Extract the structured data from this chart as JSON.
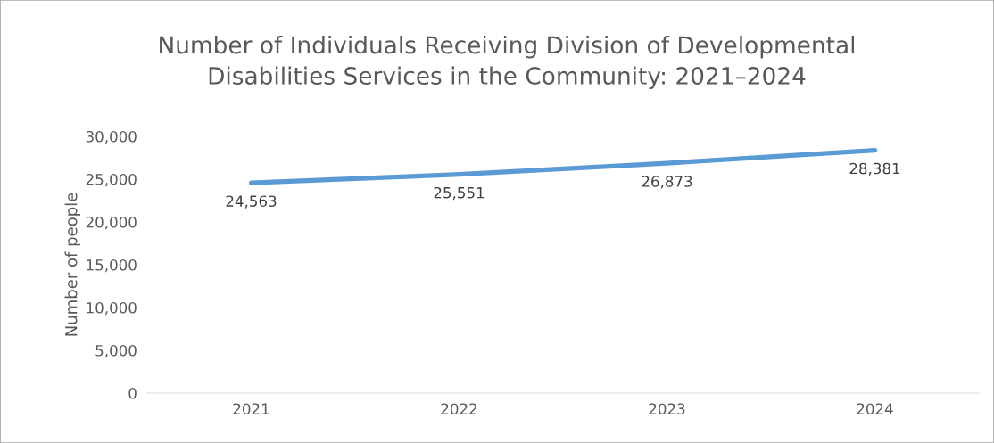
{
  "chart_data": {
    "type": "line",
    "title": "Number of Individuals Receiving Division of Developmental\nDisabilities Services in the Community: 2021–2024",
    "ylabel": "Number of people",
    "categories": [
      "2021",
      "2022",
      "2023",
      "2024"
    ],
    "series": [
      {
        "color": "#5b9bd5",
        "values": [
          24563,
          25551,
          26873,
          28381
        ],
        "value_labels": [
          "24,563",
          "25,551",
          "26,873",
          "28,381"
        ]
      }
    ],
    "ylim": [
      0,
      30000
    ],
    "yticks": [
      {
        "value": 0,
        "label": "0"
      },
      {
        "value": 5000,
        "label": "5,000"
      },
      {
        "value": 10000,
        "label": "10,000"
      },
      {
        "value": 15000,
        "label": "15,000"
      },
      {
        "value": 20000,
        "label": "20,000"
      },
      {
        "value": 25000,
        "label": "25,000"
      },
      {
        "value": 30000,
        "label": "30,000"
      }
    ],
    "grid": false,
    "legend": false,
    "marker": "none",
    "line_style": "solid"
  }
}
